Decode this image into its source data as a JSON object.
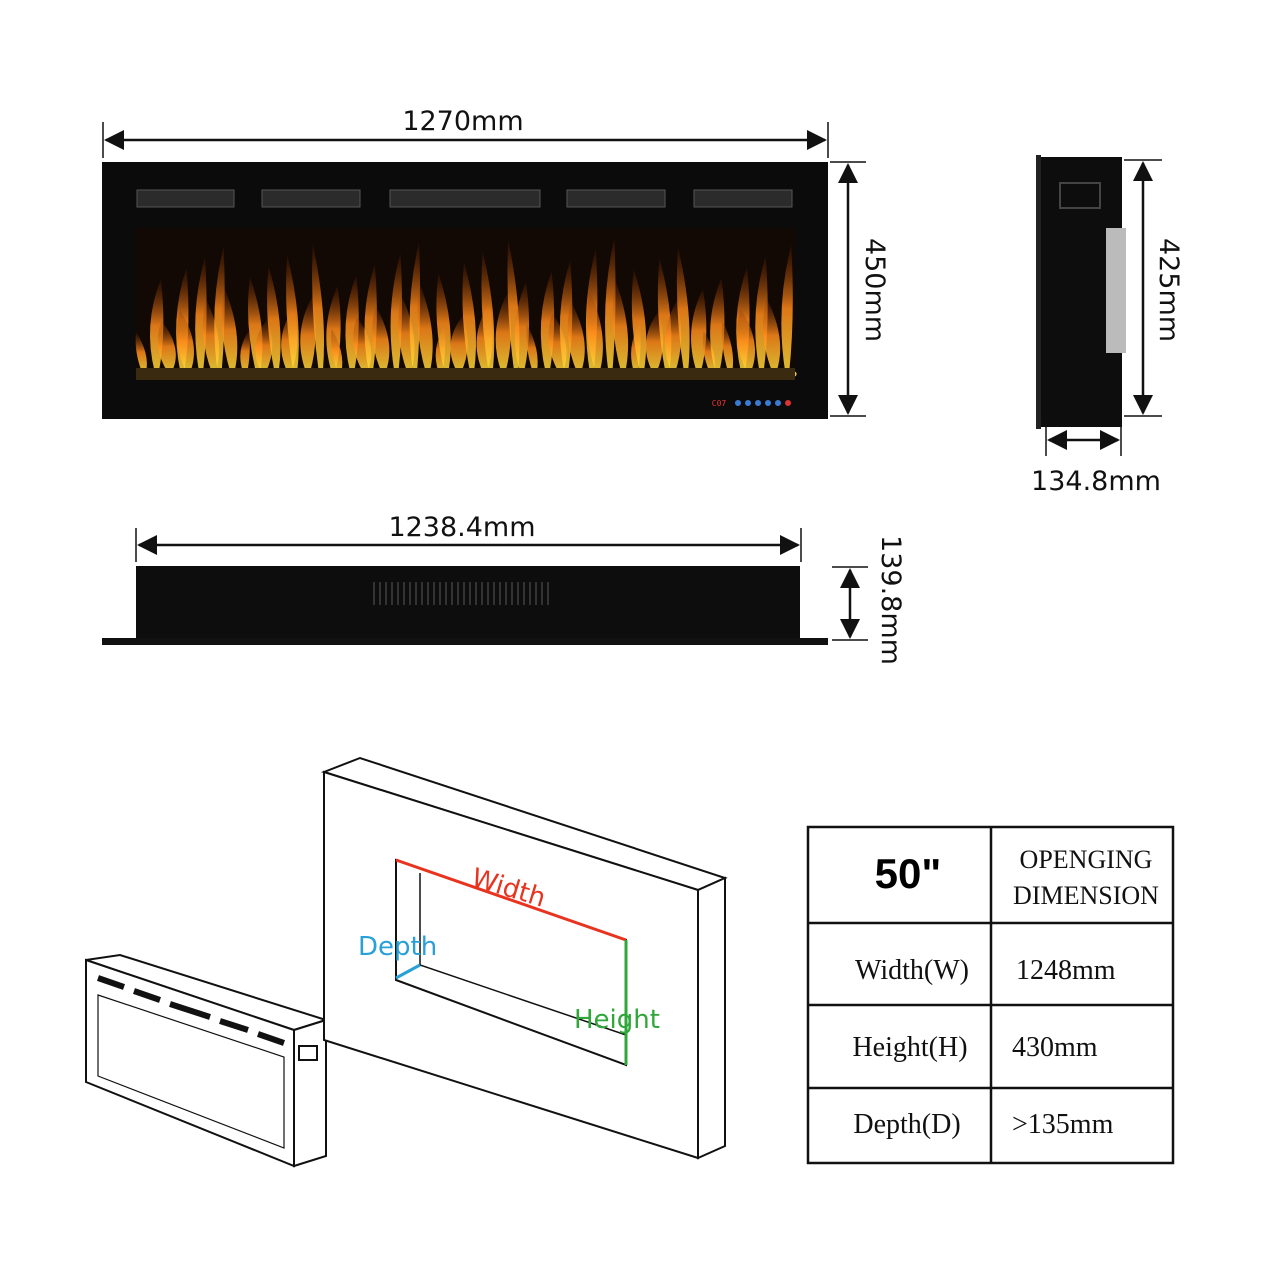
{
  "front_view": {
    "width": "1270mm",
    "height": "450mm",
    "display": "C07"
  },
  "side_view": {
    "height": "425mm",
    "depth": "134.8mm"
  },
  "bottom_view": {
    "width": "1238.4mm",
    "height": "139.8mm"
  },
  "wall_opening": {
    "width_label": "Width",
    "depth_label": "Depth",
    "height_label": "Height"
  },
  "table": {
    "size": "50\"",
    "header_lines": [
      "OPENGING",
      "DIMENSION"
    ],
    "rows": [
      [
        "Width(W)",
        "1248mm"
      ],
      [
        "Height(H)",
        "430mm"
      ],
      [
        "Depth(D)",
        ">135mm"
      ]
    ]
  }
}
